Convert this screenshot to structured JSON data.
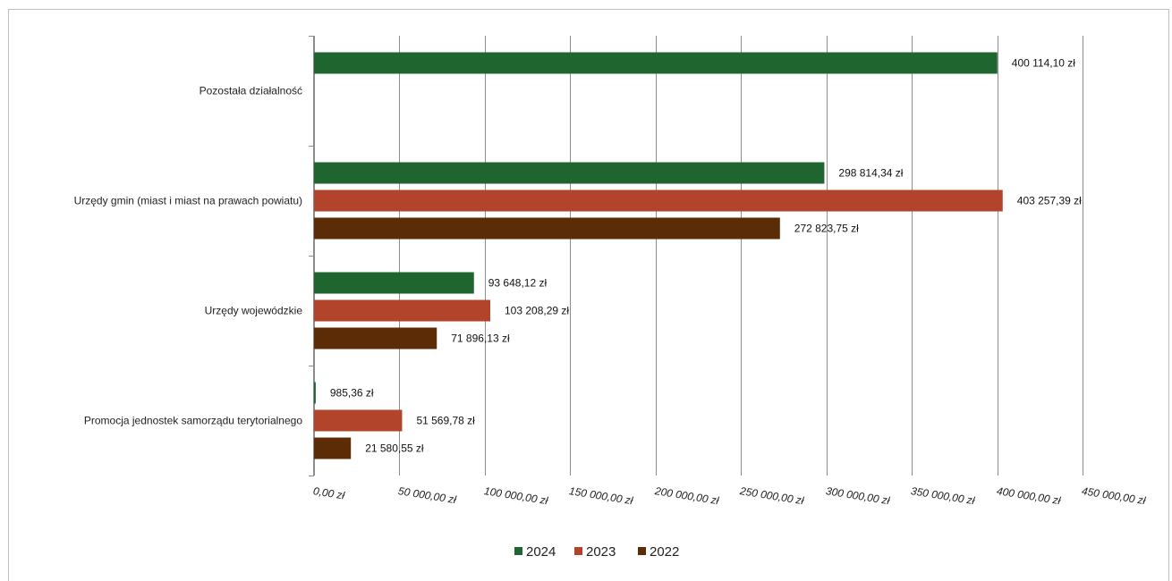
{
  "chart_data": {
    "type": "bar",
    "orientation": "horizontal",
    "title": "",
    "xlabel": "",
    "ylabel": "",
    "xlim": [
      0,
      450000
    ],
    "grid": "vertical",
    "legend_position": "bottom",
    "categories": [
      "Promocja jednostek samorządu terytorialnego",
      "Urzędy wojewódzkie",
      "Urzędy gmin (miast i miast na prawach powiatu)",
      "Pozostała działalność"
    ],
    "series": [
      {
        "name": "2024",
        "color": "#1f6530",
        "values": [
          985.36,
          93648.12,
          298814.34,
          400114.1
        ],
        "labels": [
          "985,36  zł",
          "93 648,12  zł",
          "298 814,34  zł",
          "400 114,10  zł"
        ]
      },
      {
        "name": "2023",
        "color": "#b1442a",
        "values": [
          51569.78,
          103208.29,
          403257.39,
          null
        ],
        "labels": [
          "51 569,78  zł",
          "103 208,29  zł",
          "403 257,39  zł",
          null
        ]
      },
      {
        "name": "2022",
        "color": "#5c2c06",
        "values": [
          21580.55,
          71896.13,
          272823.75,
          null
        ],
        "labels": [
          "21 580,55  zł",
          "71 896,13  zł",
          "272 823,75  zł",
          null
        ]
      }
    ],
    "x_ticks": [
      0,
      50000,
      100000,
      150000,
      200000,
      250000,
      300000,
      350000,
      400000,
      450000
    ],
    "x_tick_labels": [
      "0,00  zł",
      "50 000,00  zł",
      "100 000,00  zł",
      "150 000,00  zł",
      "200 000,00  zł",
      "250 000,00  zł",
      "300 000,00  zł",
      "350 000,00  zł",
      "400 000,00  zł",
      "450 000,00  zł"
    ]
  }
}
